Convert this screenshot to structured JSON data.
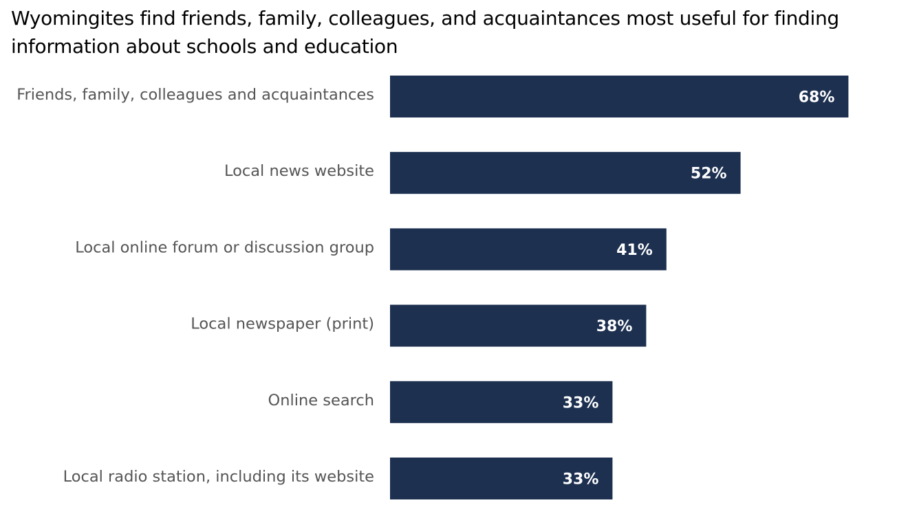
{
  "chart_data": {
    "type": "bar",
    "orientation": "horizontal",
    "title": "Wyomingites find friends, family, colleagues, and acquaintances most useful for finding information about schools and education",
    "categories": [
      "Friends, family, colleagues and acquaintances",
      "Local news website",
      "Local online forum or discussion group",
      "Local newspaper (print)",
      "Online search",
      "Local radio station, including its website"
    ],
    "values": [
      68,
      52,
      41,
      38,
      33,
      33
    ],
    "value_labels": [
      "68%",
      "52%",
      "41%",
      "38%",
      "33%",
      "33%"
    ],
    "xlim": [
      0,
      100
    ],
    "grid": false,
    "legend": "none",
    "bar_color": "#1d3050",
    "value_label_color": "#ffffff",
    "category_label_color": "#555555"
  }
}
